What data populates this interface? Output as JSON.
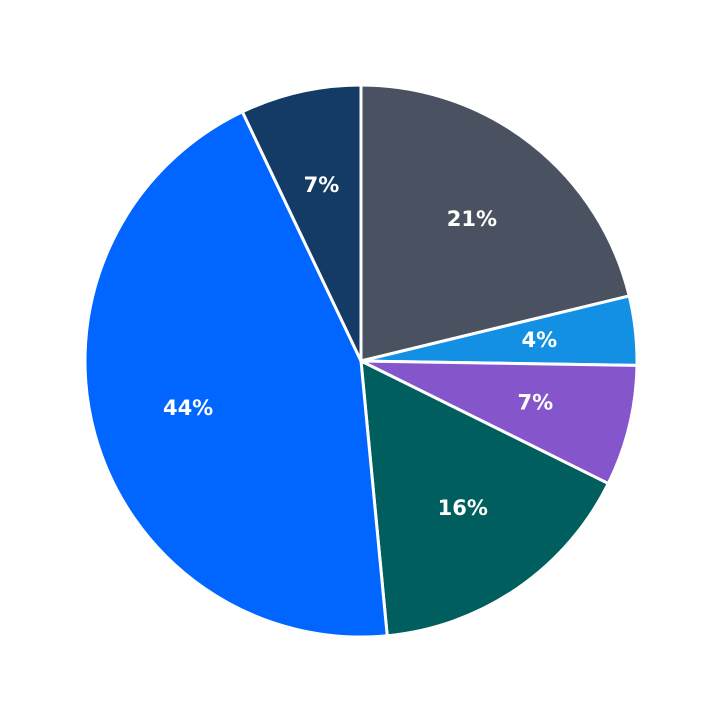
{
  "chart_data": {
    "type": "pie",
    "values": [
      21,
      4,
      7,
      16,
      44,
      7
    ],
    "value_labels": [
      "21%",
      "4%",
      "7%",
      "16%",
      "44%",
      "7%"
    ],
    "colors": [
      "#4a5261",
      "#1390e4",
      "#8455cb",
      "#005e5e",
      "#0066ff",
      "#143a66"
    ]
  }
}
